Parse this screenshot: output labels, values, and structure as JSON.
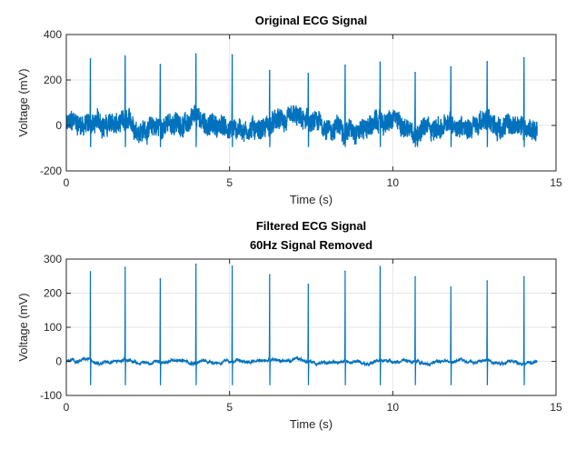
{
  "chart_data": [
    {
      "type": "line",
      "title": [
        "Original ECG Signal"
      ],
      "xlabel": "Time (s)",
      "ylabel": "Voltage (mV)",
      "xlim": [
        0,
        15
      ],
      "ylim": [
        -200,
        400
      ],
      "xticks": [
        0,
        5,
        10,
        15
      ],
      "yticks": [
        -200,
        0,
        200,
        400
      ],
      "grid": true,
      "series": [
        {
          "name": "ECG",
          "color": "#0072BD",
          "duration_s": 14.42,
          "noise_amplitude_mV": 55,
          "r_peaks_time_s": [
            0.74,
            1.8,
            2.88,
            3.97,
            5.08,
            6.23,
            7.41,
            8.54,
            9.61,
            10.69,
            11.78,
            12.89,
            14.02
          ],
          "r_peaks_mV": [
            293,
            306,
            268,
            315,
            311,
            242,
            229,
            265,
            279,
            233,
            258,
            281,
            298
          ]
        }
      ]
    },
    {
      "type": "line",
      "title": [
        "Filtered ECG Signal",
        "60Hz Signal Removed"
      ],
      "xlabel": "Time (s)",
      "ylabel": "Voltage (mV)",
      "xlim": [
        0,
        15
      ],
      "ylim": [
        -100,
        300
      ],
      "xticks": [
        0,
        5,
        10,
        15
      ],
      "yticks": [
        -100,
        0,
        100,
        200,
        300
      ],
      "grid": true,
      "series": [
        {
          "name": "Filtered ECG",
          "color": "#0072BD",
          "duration_s": 14.42,
          "noise_amplitude_mV": 12,
          "r_peaks_time_s": [
            0.74,
            1.8,
            2.88,
            3.97,
            5.08,
            6.23,
            7.41,
            8.54,
            9.61,
            10.69,
            11.78,
            12.89,
            14.02
          ],
          "r_peaks_mV": [
            263,
            276,
            242,
            285,
            279,
            254,
            226,
            264,
            278,
            248,
            218,
            236,
            248
          ]
        }
      ]
    }
  ]
}
